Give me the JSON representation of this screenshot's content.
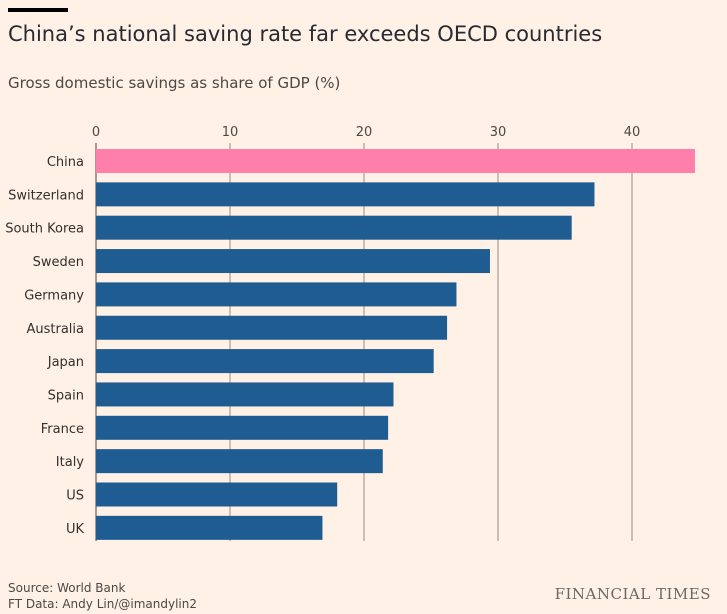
{
  "header": {
    "title": "China’s national saving rate far exceeds OECD countries",
    "subtitle": "Gross domestic savings as share of GDP (%)"
  },
  "footer": {
    "source": "Source: World Bank",
    "credit": "FT Data: Andy Lin/@imandylin2",
    "brand": "FINANCIAL TIMES"
  },
  "colors": {
    "highlight": "#ff7fab",
    "bar": "#1f5c91",
    "background": "#fff1e5",
    "grid": "#b8aea5"
  },
  "chart_data": {
    "type": "bar",
    "orientation": "horizontal",
    "title": "China’s national saving rate far exceeds OECD countries",
    "subtitle": "Gross domestic savings as share of GDP (%)",
    "categories": [
      "China",
      "Switzerland",
      "South Korea",
      "Sweden",
      "Germany",
      "Australia",
      "Japan",
      "Spain",
      "France",
      "Italy",
      "US",
      "UK"
    ],
    "values": [
      44.7,
      37.2,
      35.5,
      29.4,
      26.9,
      26.2,
      25.2,
      22.2,
      21.8,
      21.4,
      18.0,
      16.9
    ],
    "highlight": [
      "China"
    ],
    "xticks": [
      0,
      10,
      20,
      30,
      40
    ],
    "xlim": [
      0,
      44.7
    ],
    "grid": true,
    "tick_position": "top"
  }
}
